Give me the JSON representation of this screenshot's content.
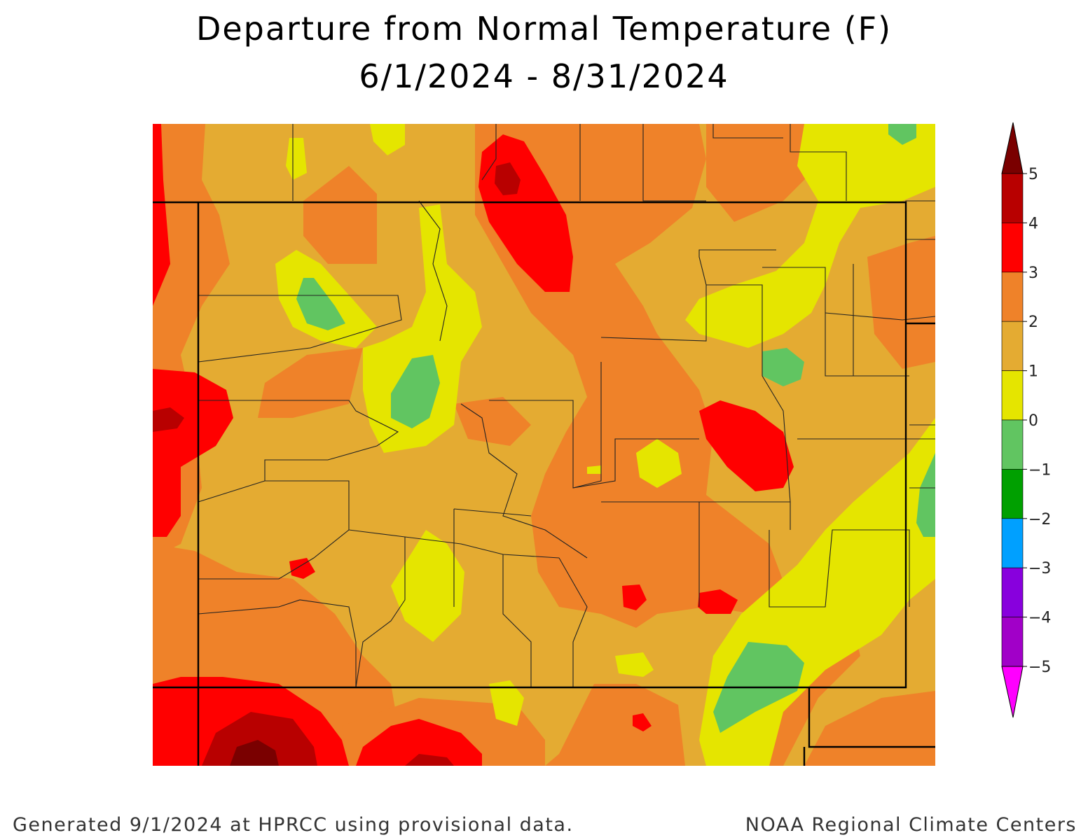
{
  "title": {
    "line1": "Departure from Normal Temperature (F)",
    "line2": "6/1/2024 - 8/31/2024"
  },
  "legend": {
    "labels": [
      "5",
      "4",
      "3",
      "2",
      "1",
      "0",
      "−1",
      "−2",
      "−3",
      "−4",
      "−5"
    ],
    "bins": [
      {
        "range": "4 to 5",
        "color": "#b80000"
      },
      {
        "range": "3 to 4",
        "color": "#ff0000"
      },
      {
        "range": "2 to 3",
        "color": "#ef8229"
      },
      {
        "range": "1 to 2",
        "color": "#e4ab32"
      },
      {
        "range": "0 to 1",
        "color": "#e5e500"
      },
      {
        "range": "-1 to 0",
        "color": "#61c561"
      },
      {
        "range": "-2 to -1",
        "color": "#00a000"
      },
      {
        "range": "-3 to -2",
        "color": "#00a0ff"
      },
      {
        "range": "-4 to -3",
        "color": "#8800dd"
      },
      {
        "range": "-5 to -4",
        "color": "#a100c8"
      }
    ],
    "above_max_color": "#7a0000",
    "below_min_color": "#ff00ff"
  },
  "footer": {
    "left": "Generated 9/1/2024 at HPRCC using provisional data.",
    "right": "NOAA Regional Climate Centers"
  }
}
